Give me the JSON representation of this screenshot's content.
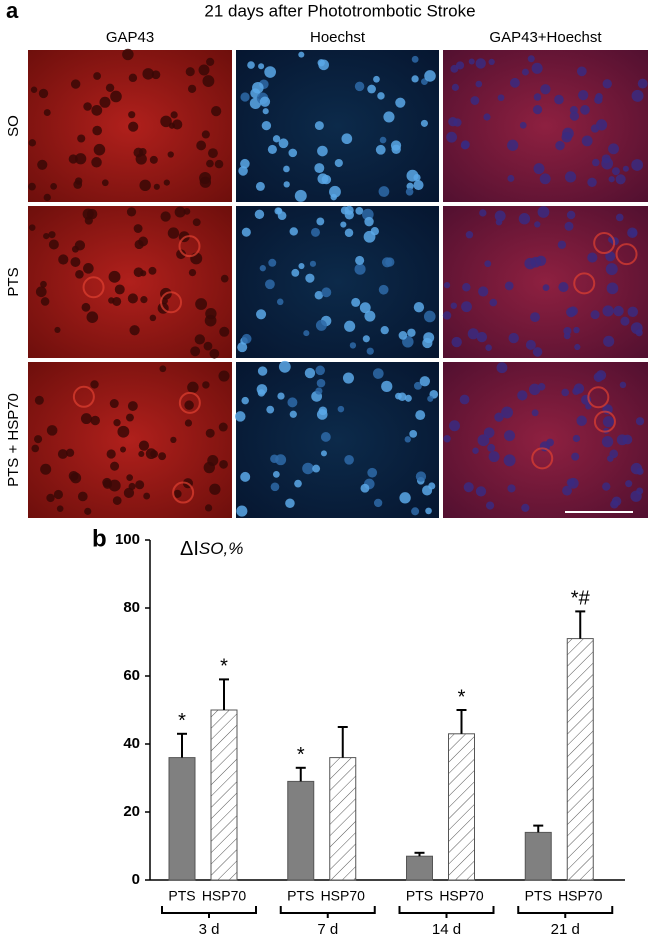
{
  "figure": {
    "panel_a": {
      "label": "a",
      "title": "21 days after Phototrombotic Stroke",
      "columns": [
        "GAP43",
        "Hoechst",
        "GAP43+Hoechst"
      ],
      "rows": [
        "SO",
        "PTS",
        "PTS + HSP70"
      ]
    }
  },
  "chart_data": {
    "type": "bar",
    "panel_label": "b",
    "ylabel": "ΔI",
    "ylabel_sub": "SO,%",
    "categories": [
      "3 d",
      "7 d",
      "14 d",
      "21 d"
    ],
    "series": [
      {
        "name": "PTS",
        "color": "#808080",
        "values": [
          36,
          29,
          7,
          14
        ],
        "errors": [
          7,
          4,
          1,
          2
        ],
        "significance": [
          "*",
          "*",
          null,
          null
        ]
      },
      {
        "name": "HSP70",
        "color": "#ffffff",
        "pattern": "hatch",
        "values": [
          50,
          36,
          43,
          71
        ],
        "errors": [
          9,
          9,
          7,
          8
        ],
        "significance": [
          "*",
          null,
          "*",
          "*#"
        ]
      }
    ],
    "ylim": [
      0,
      100
    ],
    "yticks": [
      0,
      20,
      40,
      60,
      80,
      100
    ]
  }
}
